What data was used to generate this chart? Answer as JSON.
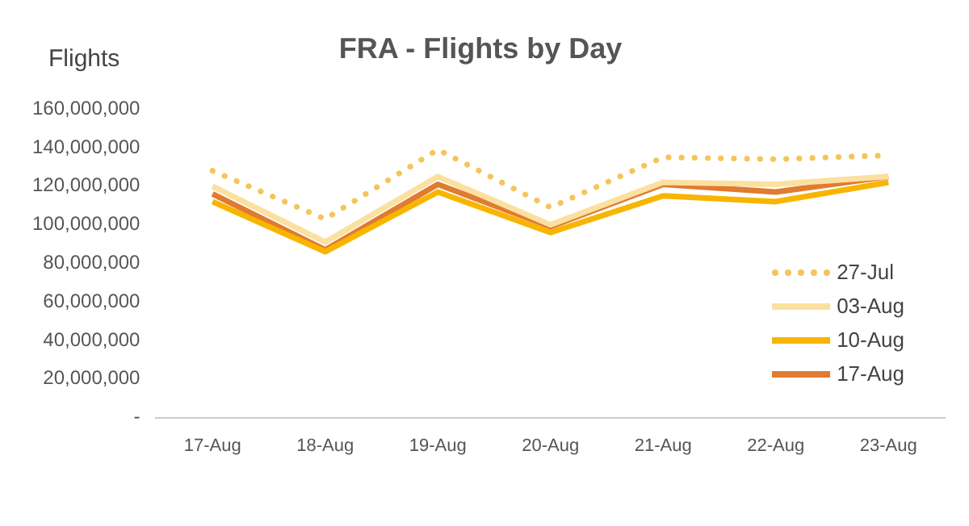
{
  "chart_data": {
    "type": "line",
    "title": "FRA - Flights by Day",
    "ylabel": "Flights",
    "categories": [
      "17-Aug",
      "18-Aug",
      "19-Aug",
      "20-Aug",
      "21-Aug",
      "22-Aug",
      "23-Aug"
    ],
    "series": [
      {
        "name": "27-Jul",
        "color": "#f5c45a",
        "line_style": "dotted",
        "values": [
          128000000,
          103000000,
          139000000,
          109000000,
          135000000,
          134000000,
          136000000
        ]
      },
      {
        "name": "03-Aug",
        "color": "#fbe0a0",
        "line_style": "solid",
        "values": [
          120000000,
          91000000,
          125000000,
          100000000,
          122000000,
          121000000,
          125000000
        ]
      },
      {
        "name": "10-Aug",
        "color": "#f7b500",
        "line_style": "solid",
        "values": [
          112000000,
          86000000,
          117000000,
          96000000,
          115000000,
          112000000,
          122000000
        ]
      },
      {
        "name": "17-Aug",
        "color": "#e07b30",
        "line_style": "solid",
        "values": [
          116000000,
          87000000,
          121000000,
          99000000,
          121000000,
          117000000,
          125000000
        ]
      }
    ],
    "ylim": [
      0,
      160000000
    ],
    "yticks": [
      {
        "value": 0,
        "label": "-"
      },
      {
        "value": 20000000,
        "label": "20,000,000"
      },
      {
        "value": 40000000,
        "label": "40,000,000"
      },
      {
        "value": 60000000,
        "label": "60,000,000"
      },
      {
        "value": 80000000,
        "label": "80,000,000"
      },
      {
        "value": 100000000,
        "label": "100,000,000"
      },
      {
        "value": 120000000,
        "label": "120,000,000"
      },
      {
        "value": 140000000,
        "label": "140,000,000"
      },
      {
        "value": 160000000,
        "label": "160,000,000"
      }
    ],
    "grid": false,
    "legend": "bottom right",
    "marker": "none"
  }
}
